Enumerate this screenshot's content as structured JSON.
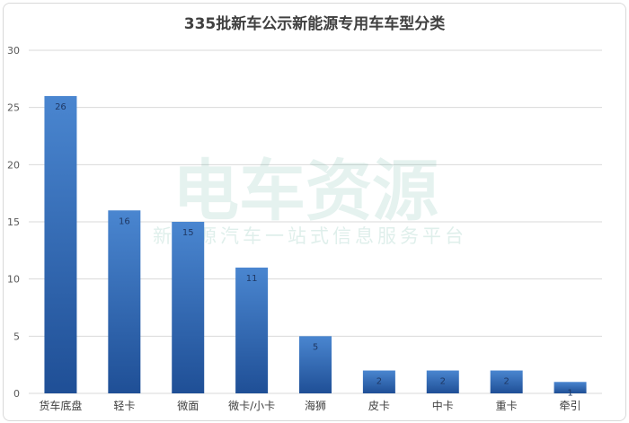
{
  "chart_data": {
    "type": "bar",
    "title": "335批新车公示新能源专用车车型分类",
    "categories": [
      "货车底盘",
      "轻卡",
      "微面",
      "微卡/小卡",
      "海狮",
      "皮卡",
      "中卡",
      "重卡",
      "牵引"
    ],
    "values": [
      26,
      16,
      15,
      11,
      5,
      2,
      2,
      2,
      1
    ],
    "ylim": [
      0,
      30
    ],
    "yticks": [
      0,
      5,
      10,
      15,
      20,
      25,
      30
    ],
    "grid": true,
    "legend": "none",
    "colors": {
      "bar_top": "#4a86d0",
      "bar_bottom": "#1f4f96",
      "grid": "#d9d9d9"
    }
  },
  "watermark": {
    "brand": "电车资源",
    "slogan": "新能源汽车一站式信息服务平台"
  }
}
